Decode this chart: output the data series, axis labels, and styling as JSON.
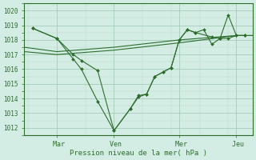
{
  "xlabel": "Pression niveau de la mer( hPa )",
  "background_color": "#d4ede4",
  "line_color": "#2d6e2d",
  "grid_color_major": "#9dc4b0",
  "grid_color_minor": "#b8d8c8",
  "ylim": [
    1011.5,
    1020.5
  ],
  "yticks": [
    1012,
    1013,
    1014,
    1015,
    1016,
    1017,
    1018,
    1019,
    1020
  ],
  "xlim": [
    0,
    14
  ],
  "xtick_labels": [
    " Mar",
    " Ven",
    " Mer",
    " Jeu"
  ],
  "xtick_positions": [
    2,
    5.5,
    9.5,
    13
  ],
  "trend_line": {
    "x": [
      0,
      2,
      5.5,
      9.5,
      13,
      14
    ],
    "y": [
      1017.2,
      1017.0,
      1017.3,
      1017.8,
      1018.3,
      1018.3
    ]
  },
  "trend_line2": {
    "x": [
      0,
      2,
      5.5,
      9.5,
      13,
      14
    ],
    "y": [
      1017.5,
      1017.2,
      1017.5,
      1018.0,
      1018.3,
      1018.3
    ]
  },
  "jagged_line1": {
    "x": [
      0.5,
      2,
      3,
      3.5,
      4.5,
      5.5,
      6.5,
      7,
      7.5,
      8,
      8.5,
      9,
      9.5,
      10,
      10.5,
      11,
      11.5,
      12,
      12.5,
      13,
      13.5
    ],
    "y": [
      1018.8,
      1018.1,
      1017.0,
      1016.6,
      1015.9,
      1011.8,
      1013.3,
      1014.1,
      1014.3,
      1015.5,
      1015.8,
      1016.1,
      1018.0,
      1018.7,
      1018.5,
      1018.7,
      1017.7,
      1018.1,
      1019.7,
      1018.3,
      1018.3
    ]
  },
  "jagged_line2": {
    "x": [
      0.5,
      2,
      3,
      3.5,
      4.5,
      5.5,
      6.5,
      7,
      7.5,
      8,
      8.5,
      9,
      9.5,
      10,
      10.5,
      11.5,
      12,
      12.5,
      13,
      13.5
    ],
    "y": [
      1018.8,
      1018.1,
      1016.7,
      1016.0,
      1013.8,
      1011.8,
      1013.3,
      1014.2,
      1014.3,
      1015.5,
      1015.8,
      1016.1,
      1018.0,
      1018.7,
      1018.5,
      1018.2,
      1018.1,
      1018.1,
      1018.3,
      1018.3
    ]
  },
  "marker": "D",
  "marker_size": 2.0,
  "linewidth": 0.8
}
